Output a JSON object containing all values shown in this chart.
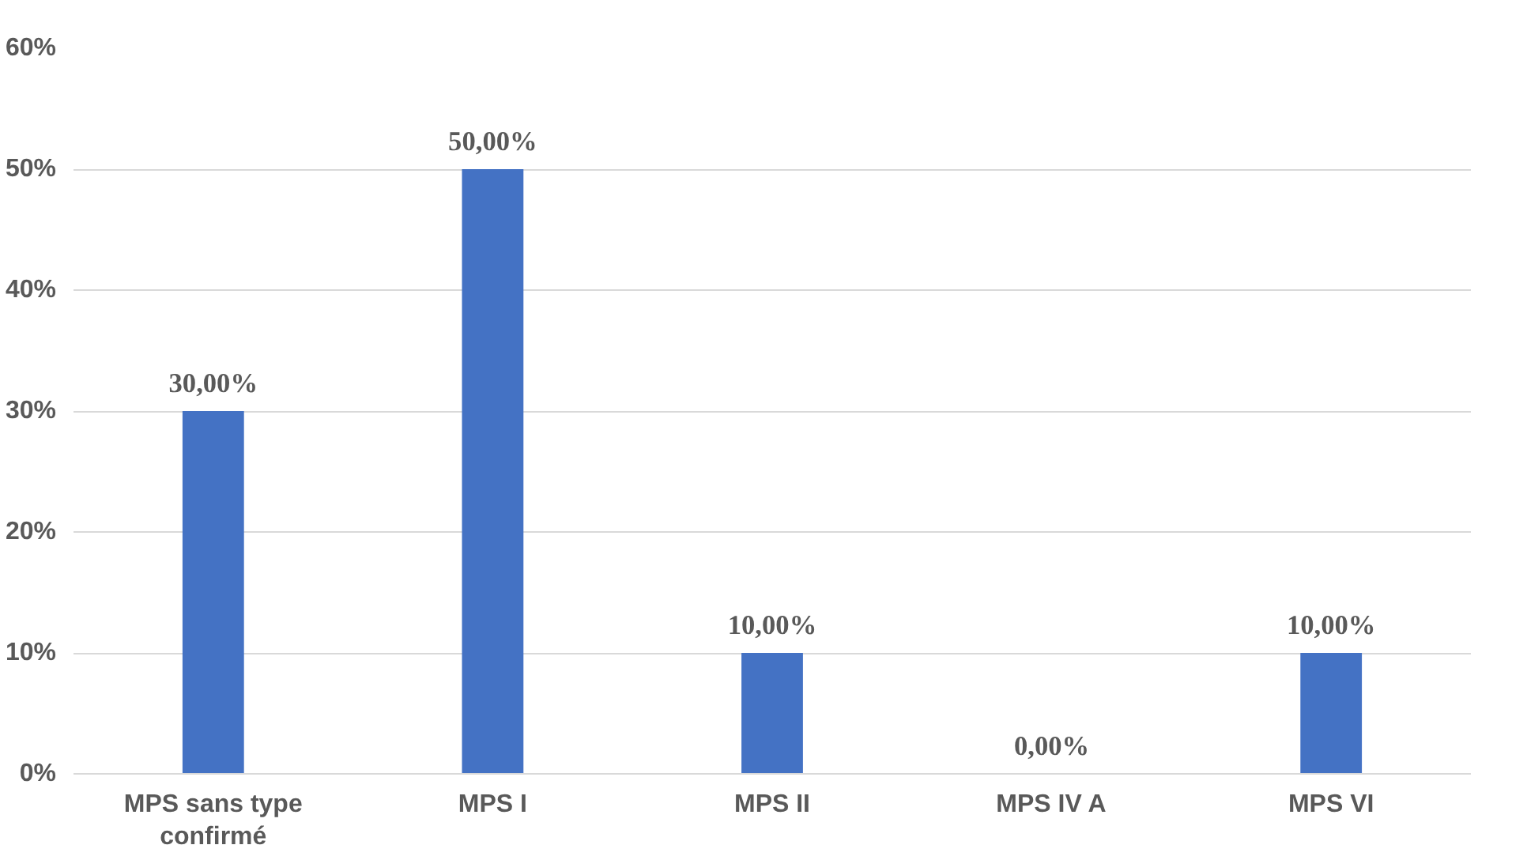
{
  "chart_data": {
    "type": "bar",
    "categories": [
      "MPS sans type confirmé",
      "MPS I",
      "MPS II",
      "MPS IV A",
      "MPS VI"
    ],
    "values": [
      30,
      50,
      10,
      0,
      10
    ],
    "value_labels": [
      "30,00%",
      "50,00%",
      "10,00%",
      "0,00%",
      "10,00%"
    ],
    "color": "#4472c4",
    "ylim": [
      0,
      60
    ],
    "yticks": [
      {
        "value": 0,
        "label": "0%"
      },
      {
        "value": 10,
        "label": "10%"
      },
      {
        "value": 20,
        "label": "20%"
      },
      {
        "value": 30,
        "label": "30%"
      },
      {
        "value": 40,
        "label": "40%"
      },
      {
        "value": 50,
        "label": "50%"
      },
      {
        "value": 60,
        "label": "60%"
      }
    ],
    "grid": "y"
  }
}
